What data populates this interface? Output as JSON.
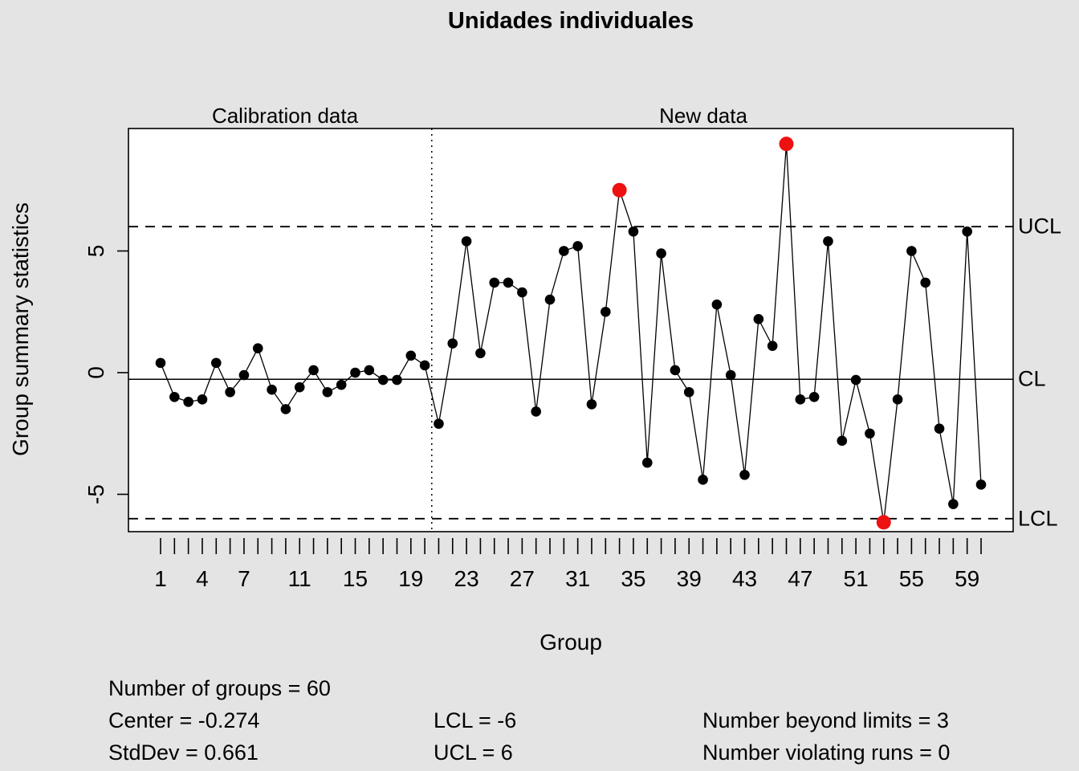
{
  "title": "Unidades individuales",
  "region_labels": {
    "calibration": "Calibration data",
    "new_data": "New data"
  },
  "axes": {
    "y_label": "Group summary statistics",
    "x_label": "Group"
  },
  "limit_labels": {
    "ucl": "UCL",
    "cl": "CL",
    "lcl": "LCL"
  },
  "stats": {
    "number_of_groups": "Number of groups = 60",
    "center": "Center = -0.274",
    "stddev": "StdDev = 0.661",
    "lcl": "LCL = -6",
    "ucl": "UCL = 6",
    "beyond_limits": "Number beyond limits = 3",
    "violating_runs": "Number violating runs = 0"
  },
  "chart_data": {
    "type": "line",
    "title": "Unidades individuales",
    "xlabel": "Group",
    "ylabel": "Group summary statistics",
    "n_groups": 60,
    "values": [
      0.4,
      -1.0,
      -1.2,
      -1.1,
      0.4,
      -0.8,
      -0.1,
      1.0,
      -0.7,
      -1.5,
      -0.6,
      0.1,
      -0.8,
      -0.5,
      0.0,
      0.1,
      -0.3,
      -0.3,
      0.7,
      0.3,
      -2.1,
      1.2,
      5.4,
      0.8,
      3.7,
      3.7,
      3.3,
      -1.6,
      3.0,
      5.0,
      5.2,
      -1.3,
      2.5,
      7.5,
      5.8,
      -3.7,
      4.9,
      0.1,
      -0.8,
      -4.4,
      2.8,
      -0.1,
      -4.2,
      2.2,
      1.1,
      9.4,
      -1.1,
      -1.0,
      5.4,
      -2.8,
      -0.3,
      -2.5,
      -6.15,
      -1.1,
      5.0,
      3.7,
      -2.3,
      -5.4,
      5.8,
      -4.6
    ],
    "center": -0.274,
    "stddev": 0.661,
    "ucl": 6,
    "lcl": -6,
    "calibration_end": 20,
    "beyond_limit_points": [
      34,
      46,
      53
    ],
    "number_beyond_limits": 3,
    "number_violating_runs": 0,
    "y_ticks": [
      -5,
      0,
      5
    ],
    "x_tick_labels": [
      1,
      4,
      7,
      11,
      15,
      19,
      23,
      27,
      31,
      35,
      39,
      43,
      47,
      51,
      55,
      59
    ],
    "ylim": [
      -6.6,
      10
    ],
    "legend_position": "none",
    "grid": false,
    "colors": {
      "background": "#e4e4e4",
      "panel": "#ffffff",
      "point": "#000000",
      "line": "#000000",
      "beyond_limit": "#ee1111"
    }
  }
}
